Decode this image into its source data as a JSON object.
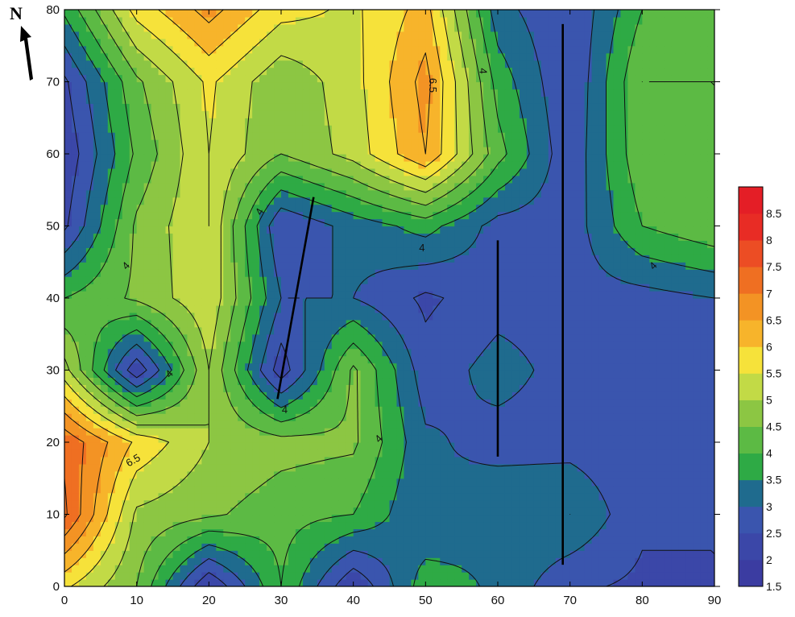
{
  "chart_data": {
    "type": "heatmap",
    "subtype": "filled-contour",
    "title": "",
    "xlabel": "",
    "ylabel": "",
    "xlim": [
      0,
      90
    ],
    "ylim": [
      0,
      80
    ],
    "x_ticks": [
      0,
      10,
      20,
      30,
      40,
      50,
      60,
      70,
      80,
      90
    ],
    "y_ticks": [
      0,
      10,
      20,
      30,
      40,
      50,
      60,
      70,
      80
    ],
    "grid": false,
    "north_arrow": {
      "label": "N",
      "icon": "north-arrow-icon"
    },
    "colorbar": {
      "placement": "right",
      "min": 1.5,
      "max": 9,
      "step": 0.5,
      "labels": [
        "8.5",
        "8",
        "7.5",
        "7",
        "6.5",
        "6",
        "5.5",
        "5",
        "4.5",
        "4",
        "3.5",
        "3",
        "2.5",
        "2",
        "1.5"
      ],
      "colors": [
        "#3b3ca1",
        "#3b47a8",
        "#3a55ae",
        "#1f6b8e",
        "#2eaa45",
        "#5cba44",
        "#8cc643",
        "#c2da46",
        "#f6e23a",
        "#f7b42b",
        "#f39324",
        "#ef6f22",
        "#ec4d24",
        "#e82c25",
        "#e41e26"
      ]
    },
    "grid_data": {
      "x": [
        0,
        10,
        20,
        30,
        40,
        50,
        60,
        70,
        80,
        90
      ],
      "y": [
        0,
        10,
        20,
        30,
        40,
        50,
        60,
        70,
        80
      ],
      "z": [
        [
          5.6,
          4.5,
          2.0,
          4.0,
          2.0,
          3.8,
          3.4,
          2.6,
          2.4,
          2.5
        ],
        [
          7.6,
          4.9,
          4.6,
          4.2,
          4.0,
          3.0,
          3.4,
          3.5,
          2.6,
          2.5
        ],
        [
          7.4,
          5.9,
          5.0,
          4.7,
          4.6,
          3.1,
          2.8,
          2.8,
          2.6,
          2.5
        ],
        [
          5.2,
          2.1,
          5.0,
          2.2,
          4.6,
          2.7,
          3.2,
          2.8,
          2.6,
          2.6
        ],
        [
          4.0,
          4.6,
          5.4,
          3.0,
          3.0,
          2.4,
          2.8,
          2.8,
          2.8,
          3.0
        ],
        [
          2.4,
          4.6,
          5.5,
          2.5,
          3.2,
          3.7,
          2.8,
          2.7,
          4.0,
          4.4
        ],
        [
          2.1,
          4.1,
          5.5,
          4.5,
          5.2,
          6.5,
          4.2,
          2.6,
          4.4,
          4.5
        ],
        [
          2.4,
          4.4,
          5.6,
          4.6,
          5.3,
          6.7,
          3.8,
          2.5,
          4.5,
          4.5
        ],
        [
          3.6,
          5.7,
          6.7,
          5.7,
          5.4,
          6.2,
          3.2,
          2.5,
          4.0,
          4.5
        ]
      ]
    },
    "line_segments": [
      {
        "points": [
          [
            29.5,
            26
          ],
          [
            34.5,
            54
          ]
        ]
      },
      {
        "points": [
          [
            60,
            18
          ],
          [
            60,
            48
          ]
        ]
      },
      {
        "points": [
          [
            69,
            3
          ],
          [
            69,
            78
          ]
        ]
      }
    ],
    "contour_labels": [
      {
        "text": "6.5",
        "x": 51,
        "y": 69.5,
        "rotate": 90
      },
      {
        "text": "4",
        "x": 58,
        "y": 71.5,
        "rotate": 90
      },
      {
        "text": "4",
        "x": 27,
        "y": 52,
        "rotate": -60
      },
      {
        "text": "4",
        "x": 8.5,
        "y": 44.5,
        "rotate": -45
      },
      {
        "text": "4",
        "x": 14.5,
        "y": 29.5,
        "rotate": -45
      },
      {
        "text": "6.5",
        "x": 9.5,
        "y": 17.5,
        "rotate": -30
      },
      {
        "text": "4",
        "x": 30.5,
        "y": 24.5,
        "rotate": 0
      },
      {
        "text": "4",
        "x": 43.5,
        "y": 20.5,
        "rotate": -45
      },
      {
        "text": "4",
        "x": 49.5,
        "y": 47,
        "rotate": 0
      },
      {
        "text": "4",
        "x": 81.5,
        "y": 44.5,
        "rotate": -45
      }
    ]
  }
}
